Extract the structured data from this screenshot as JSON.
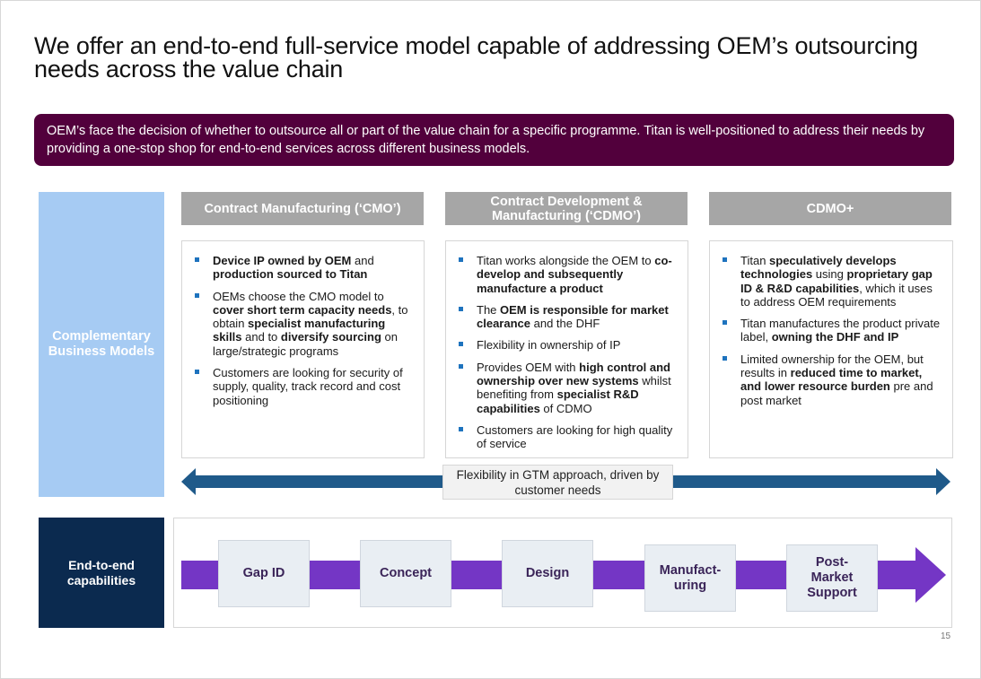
{
  "title": "We offer an end-to-end full-service model capable of addressing OEM’s outsourcing needs across the value chain",
  "banner": "OEM’s face the decision of whether to outsource all or part of the value chain for a specific programme. Titan is well-positioned to address their needs by providing a one-stop shop for end-to-end services across different business models.",
  "left_label": "Complementary Business Models",
  "columns": [
    {
      "heading": "Contract Manufacturing (‘CMO’)",
      "bullets": [
        [
          {
            "t": "Device IP owned by OEM",
            "b": true
          },
          {
            "t": " and ",
            "b": false
          },
          {
            "t": "production sourced to Titan",
            "b": true
          }
        ],
        [
          {
            "t": "OEMs choose the CMO model to ",
            "b": false
          },
          {
            "t": "cover short term capacity needs",
            "b": true
          },
          {
            "t": ", to obtain ",
            "b": false
          },
          {
            "t": "specialist manufacturing skills",
            "b": true
          },
          {
            "t": " and to ",
            "b": false
          },
          {
            "t": "diversify sourcing",
            "b": true
          },
          {
            "t": " on large/strategic programs",
            "b": false
          }
        ],
        [
          {
            "t": "Customers are looking for security of supply, quality, track record and cost positioning",
            "b": false
          }
        ]
      ]
    },
    {
      "heading": "Contract Development & Manufacturing (‘CDMO’)",
      "bullets": [
        [
          {
            "t": "Titan works alongside the OEM to ",
            "b": false
          },
          {
            "t": "co-develop and subsequently manufacture a product",
            "b": true
          }
        ],
        [
          {
            "t": "The ",
            "b": false
          },
          {
            "t": "OEM is responsible for market clearance",
            "b": true
          },
          {
            "t": " and the DHF",
            "b": false
          }
        ],
        [
          {
            "t": "Flexibility in ownership of IP",
            "b": false
          }
        ],
        [
          {
            "t": "Provides OEM with ",
            "b": false
          },
          {
            "t": "high control and ownership over new systems",
            "b": true
          },
          {
            "t": " whilst benefiting from ",
            "b": false
          },
          {
            "t": "specialist R&D capabilities",
            "b": true
          },
          {
            "t": " of CDMO",
            "b": false
          }
        ],
        [
          {
            "t": "Customers are looking for high quality of service",
            "b": false
          }
        ]
      ]
    },
    {
      "heading": "CDMO+",
      "bullets": [
        [
          {
            "t": "Titan ",
            "b": false
          },
          {
            "t": "speculatively develops technologies",
            "b": true
          },
          {
            "t": " using ",
            "b": false
          },
          {
            "t": "proprietary gap ID & R&D capabilities",
            "b": true
          },
          {
            "t": ", which it uses to address OEM requirements",
            "b": false
          }
        ],
        [
          {
            "t": "Titan manufactures the product private label, ",
            "b": false
          },
          {
            "t": "owning the DHF and IP",
            "b": true
          }
        ],
        [
          {
            "t": "Limited ownership for the OEM, but results in ",
            "b": false
          },
          {
            "t": "reduced time to market, and lower resource burden",
            "b": true
          },
          {
            "t": " pre and post market",
            "b": false
          }
        ]
      ]
    }
  ],
  "gtm_label": "Flexibility in GTM approach, driven by customer needs",
  "e2e_label": "End-to-end capabilities",
  "stages": [
    "Gap ID",
    "Concept",
    "Design",
    "Manufact-uring",
    "Post-Market Support"
  ],
  "page_number": "15",
  "colors": {
    "banner": "#52003c",
    "left_panel": "#a6cbf3",
    "e2e_panel": "#0b2a4f",
    "gtm_arrow": "#1f5a8a",
    "flow_arrow": "#7436c5",
    "bullet": "#1e73be"
  }
}
